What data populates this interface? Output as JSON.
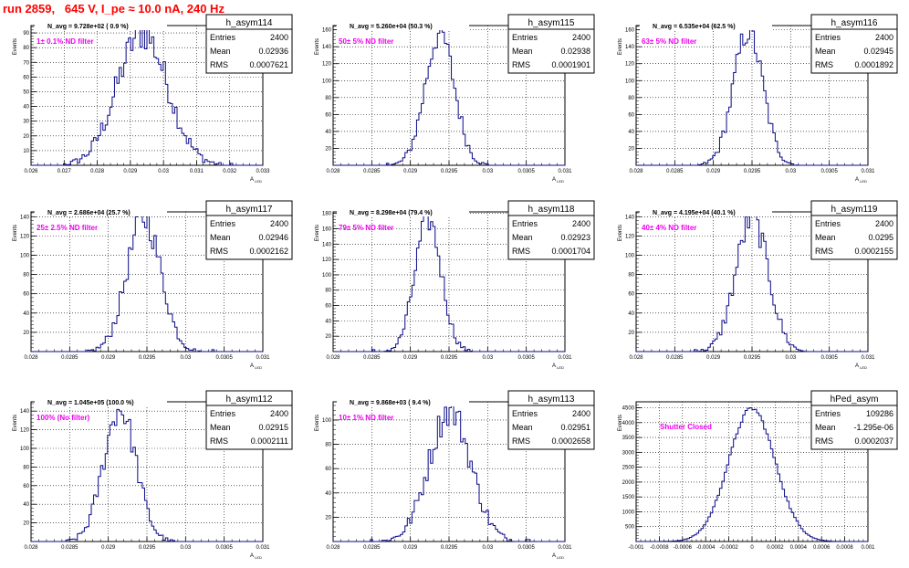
{
  "run_title": "run 2859,   645 V, I_pe ≈ 10.0 nA, 240 Hz",
  "stats_labels": {
    "entries": "Entries",
    "mean": "Mean",
    "rms": "RMS"
  },
  "colors": {
    "histogram": "#0a0a8a",
    "annotation": "#ee00ee",
    "title": "#ff0000",
    "grid": "#000000"
  },
  "chart_data": [
    {
      "type": "histogram",
      "name": "h_asym114",
      "navg": "N_avg = 9.728e+02 ( 0.9 %)",
      "annotation": "1± 0.1% ND filter",
      "entries": "2400",
      "mean": "0.02936",
      "rms": "0.0007621",
      "mu": 0.02936,
      "sigma": 0.00076,
      "peak": 90,
      "xlim": [
        0.026,
        0.033
      ],
      "ylim": [
        0,
        95
      ],
      "xlabel": "A_{LED}",
      "ylabel": "Events",
      "xticks": [
        "0.026",
        "0.027",
        "0.028",
        "0.029",
        "0.03",
        "0.031",
        "0.032",
        "0.033"
      ],
      "yticks": [
        "10",
        "20",
        "30",
        "40",
        "50",
        "60",
        "70",
        "80",
        "90"
      ]
    },
    {
      "type": "histogram",
      "name": "h_asym115",
      "navg": "N_avg = 5.260e+04 (50.3 %)",
      "annotation": "50± 5% ND filter",
      "entries": "2400",
      "mean": "0.02938",
      "rms": "0.0001901",
      "mu": 0.02938,
      "sigma": 0.00019,
      "peak": 155,
      "xlim": [
        0.028,
        0.031
      ],
      "ylim": [
        0,
        165
      ],
      "xlabel": "A_{LED}",
      "ylabel": "Events",
      "xticks": [
        "0.028",
        "0.0285",
        "0.029",
        "0.0295",
        "0.03",
        "0.0305",
        "0.031"
      ],
      "yticks": [
        "20",
        "40",
        "60",
        "80",
        "100",
        "120",
        "140",
        "160"
      ]
    },
    {
      "type": "histogram",
      "name": "h_asym116",
      "navg": "N_avg = 6.535e+04 (62.5 %)",
      "annotation": "63± 5% ND filter",
      "entries": "2400",
      "mean": "0.02945",
      "rms": "0.0001892",
      "mu": 0.02945,
      "sigma": 0.00019,
      "peak": 158,
      "xlim": [
        0.028,
        0.031
      ],
      "ylim": [
        0,
        165
      ],
      "xlabel": "A_{LED}",
      "ylabel": "Events",
      "xticks": [
        "0.028",
        "0.0285",
        "0.029",
        "0.0295",
        "0.03",
        "0.0305",
        "0.031"
      ],
      "yticks": [
        "20",
        "40",
        "60",
        "80",
        "100",
        "120",
        "140",
        "160"
      ]
    },
    {
      "type": "histogram",
      "name": "h_asym117",
      "navg": "N_avg = 2.686e+04 (25.7 %)",
      "annotation": "25± 2.5% ND filter",
      "entries": "2400",
      "mean": "0.02946",
      "rms": "0.0002162",
      "mu": 0.02946,
      "sigma": 0.00022,
      "peak": 138,
      "xlim": [
        0.028,
        0.031
      ],
      "ylim": [
        0,
        145
      ],
      "xlabel": "A_{LED}",
      "ylabel": "Events",
      "xticks": [
        "0.028",
        "0.0285",
        "0.029",
        "0.0295",
        "0.03",
        "0.0305",
        "0.031"
      ],
      "yticks": [
        "20",
        "40",
        "60",
        "80",
        "100",
        "120",
        "140"
      ]
    },
    {
      "type": "histogram",
      "name": "h_asym118",
      "navg": "N_avg = 8.298e+04 (79.4 %)",
      "annotation": "79± 5% ND filter",
      "entries": "2400",
      "mean": "0.02923",
      "rms": "0.0001704",
      "mu": 0.02923,
      "sigma": 0.00017,
      "peak": 172,
      "xlim": [
        0.028,
        0.031
      ],
      "ylim": [
        0,
        182
      ],
      "xlabel": "A_{LED}",
      "ylabel": "Events",
      "xticks": [
        "0.028",
        "0.0285",
        "0.029",
        "0.0295",
        "0.03",
        "0.0305",
        "0.031"
      ],
      "yticks": [
        "20",
        "40",
        "60",
        "80",
        "100",
        "120",
        "140",
        "160",
        "180"
      ]
    },
    {
      "type": "histogram",
      "name": "h_asym119",
      "navg": "N_avg = 4.195e+04 (40.1 %)",
      "annotation": "40± 4% ND filter",
      "entries": "2400",
      "mean": "0.0295",
      "rms": "0.0002155",
      "mu": 0.0295,
      "sigma": 0.00021,
      "peak": 138,
      "xlim": [
        0.028,
        0.031
      ],
      "ylim": [
        0,
        145
      ],
      "xlabel": "A_{LED}",
      "ylabel": "Events",
      "xticks": [
        "0.028",
        "0.0285",
        "0.029",
        "0.0295",
        "0.03",
        "0.0305",
        "0.031"
      ],
      "yticks": [
        "20",
        "40",
        "60",
        "80",
        "100",
        "120",
        "140"
      ]
    },
    {
      "type": "histogram",
      "name": "h_asym112",
      "navg": "N_avg = 1.045e+05 (100.0 %)",
      "annotation": "100% (No filter)",
      "entries": "2400",
      "mean": "0.02915",
      "rms": "0.0002111",
      "mu": 0.02915,
      "sigma": 0.00021,
      "peak": 142,
      "xlim": [
        0.028,
        0.031
      ],
      "ylim": [
        0,
        150
      ],
      "xlabel": "A_{LED}",
      "ylabel": "Events",
      "xticks": [
        "0.028",
        "0.0285",
        "0.029",
        "0.0295",
        "0.03",
        "0.0305",
        "0.031"
      ],
      "yticks": [
        "20",
        "40",
        "60",
        "80",
        "100",
        "120",
        "140"
      ]
    },
    {
      "type": "histogram",
      "name": "h_asym113",
      "navg": "N_avg = 9.868e+03 ( 9.4 %)",
      "annotation": "10± 1% ND filter",
      "entries": "2400",
      "mean": "0.02951",
      "rms": "0.0002658",
      "mu": 0.02951,
      "sigma": 0.00027,
      "peak": 108,
      "xlim": [
        0.028,
        0.031
      ],
      "ylim": [
        0,
        115
      ],
      "xlabel": "A_{LED}",
      "ylabel": "Events",
      "xticks": [
        "0.028",
        "0.0285",
        "0.029",
        "0.0295",
        "0.03",
        "0.0305",
        "0.031"
      ],
      "yticks": [
        "20",
        "40",
        "60",
        "80",
        "100"
      ]
    },
    {
      "type": "histogram",
      "name": "hPed_asym",
      "navg": "",
      "annotation": "Shutter Closed",
      "entries": "109286",
      "mean": "-1.295e-06",
      "rms": "0.0002037",
      "mu": -1.3e-06,
      "sigma": 0.0002,
      "peak": 4480,
      "xlim": [
        -0.001,
        0.001
      ],
      "ylim": [
        0,
        4700
      ],
      "xlabel": "",
      "ylabel": "Events",
      "xticks": [
        "-0.001",
        "-0.0008",
        "-0.0006",
        "-0.0004",
        "-0.0002",
        "0",
        "0.0002",
        "0.0004",
        "0.0006",
        "0.0008",
        "0.001"
      ],
      "yticks": [
        "500",
        "1000",
        "1500",
        "2000",
        "2500",
        "3000",
        "3500",
        "4000",
        "4500"
      ]
    }
  ]
}
